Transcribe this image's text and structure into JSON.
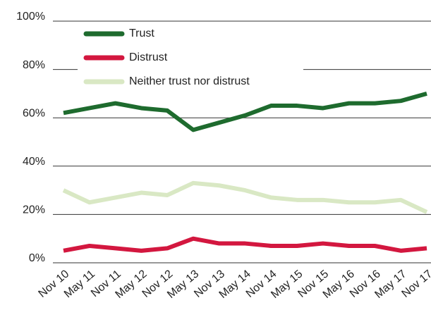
{
  "chart_data": {
    "type": "line",
    "categories": [
      "Nov 10",
      "May 11",
      "Nov 11",
      "May 12",
      "Nov 12",
      "May 13",
      "Nov 13",
      "May 14",
      "Nov 14",
      "May 15",
      "Nov 15",
      "May 16",
      "Nov 16",
      "May 17",
      "Nov 17"
    ],
    "series": [
      {
        "name": "Trust",
        "color": "#1e6b2e",
        "values": [
          62,
          64,
          66,
          64,
          63,
          55,
          58,
          61,
          65,
          65,
          64,
          66,
          66,
          67,
          70
        ]
      },
      {
        "name": "Distrust",
        "color": "#d3173f",
        "values": [
          5,
          7,
          6,
          5,
          6,
          10,
          8,
          8,
          7,
          7,
          8,
          7,
          7,
          5,
          6
        ]
      },
      {
        "name": "Neither trust nor distrust",
        "color": "#d9e8c4",
        "values": [
          30,
          25,
          27,
          29,
          28,
          33,
          32,
          30,
          27,
          26,
          26,
          25,
          25,
          26,
          21
        ]
      }
    ],
    "ylim": [
      0,
      100
    ],
    "yticks": [
      {
        "value": 0,
        "label": "0%"
      },
      {
        "value": 20,
        "label": "20%"
      },
      {
        "value": 40,
        "label": "40%"
      },
      {
        "value": 60,
        "label": "60%"
      },
      {
        "value": 80,
        "label": "80%"
      },
      {
        "value": 100,
        "label": "100%"
      }
    ],
    "grid": true,
    "legend": "top-left"
  }
}
